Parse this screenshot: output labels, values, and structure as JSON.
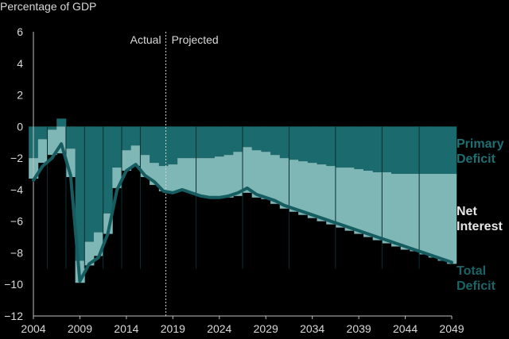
{
  "chart_data": {
    "type": "area",
    "ylabel": "Percentage of GDP",
    "ylim": [
      -12,
      6
    ],
    "yticks": [
      "6",
      "4",
      "2",
      "0",
      "−2",
      "−4",
      "−6",
      "−8",
      "−10",
      "−12"
    ],
    "ytick_values": [
      6,
      4,
      2,
      0,
      -2,
      -4,
      -6,
      -8,
      -10,
      -12
    ],
    "xlim": [
      2004,
      2049
    ],
    "xticks": [
      "2004",
      "2009",
      "2014",
      "2019",
      "2024",
      "2029",
      "2034",
      "2039",
      "2044",
      "2049"
    ],
    "xtick_values": [
      2004,
      2009,
      2014,
      2019,
      2024,
      2029,
      2034,
      2039,
      2044,
      2049
    ],
    "divider_year": 2018,
    "annotations": {
      "actual": "Actual",
      "projected": "Projected"
    },
    "years": [
      2004,
      2005,
      2006,
      2007,
      2008,
      2009,
      2010,
      2011,
      2012,
      2013,
      2014,
      2015,
      2016,
      2017,
      2018,
      2019,
      2020,
      2021,
      2022,
      2023,
      2024,
      2025,
      2026,
      2027,
      2028,
      2029,
      2030,
      2031,
      2032,
      2033,
      2034,
      2035,
      2036,
      2037,
      2038,
      2039,
      2040,
      2041,
      2042,
      2043,
      2044,
      2045,
      2046,
      2047,
      2048,
      2049
    ],
    "series": [
      {
        "name": "Primary Deficit",
        "color": "#1b6b6e",
        "values": [
          -2.0,
          -0.8,
          -0.2,
          0.5,
          -1.4,
          -8.5,
          -7.3,
          -6.7,
          -5.5,
          -2.6,
          -1.5,
          -1.2,
          -1.8,
          -2.3,
          -2.5,
          -2.4,
          -2.0,
          -2.0,
          -2.0,
          -2.0,
          -1.9,
          -1.8,
          -1.6,
          -1.3,
          -1.5,
          -1.6,
          -1.8,
          -2.0,
          -2.1,
          -2.2,
          -2.3,
          -2.4,
          -2.5,
          -2.6,
          -2.6,
          -2.7,
          -2.8,
          -2.9,
          -2.9,
          -3.0,
          -3.0,
          -3.0,
          -3.0,
          -3.0,
          -3.0,
          -3.0
        ]
      },
      {
        "name": "Net Interest",
        "color": "#7fb6b6",
        "values": [
          -1.3,
          -1.5,
          -1.6,
          -1.7,
          -1.8,
          -1.4,
          -1.5,
          -1.5,
          -1.3,
          -1.3,
          -1.3,
          -1.3,
          -1.4,
          -1.4,
          -1.6,
          -1.8,
          -2.0,
          -2.2,
          -2.4,
          -2.5,
          -2.6,
          -2.7,
          -2.8,
          -2.9,
          -3.0,
          -3.0,
          -3.1,
          -3.2,
          -3.3,
          -3.4,
          -3.5,
          -3.6,
          -3.7,
          -3.8,
          -4.0,
          -4.1,
          -4.2,
          -4.3,
          -4.5,
          -4.6,
          -4.8,
          -4.9,
          -5.1,
          -5.3,
          -5.5,
          -5.7
        ]
      },
      {
        "name": "Total Deficit",
        "color": "#165d61",
        "values": [
          -3.4,
          -2.5,
          -2.0,
          -1.1,
          -3.1,
          -9.8,
          -8.7,
          -8.3,
          -6.8,
          -4.0,
          -2.8,
          -2.4,
          -3.1,
          -3.5,
          -4.1,
          -4.2,
          -4.0,
          -4.2,
          -4.4,
          -4.5,
          -4.5,
          -4.4,
          -4.2,
          -3.9,
          -4.3,
          -4.5,
          -4.7,
          -5.0,
          -5.2,
          -5.4,
          -5.6,
          -5.8,
          -6.0,
          -6.2,
          -6.4,
          -6.6,
          -6.8,
          -7.0,
          -7.2,
          -7.4,
          -7.6,
          -7.8,
          -8.0,
          -8.2,
          -8.4,
          -8.6
        ]
      }
    ]
  }
}
